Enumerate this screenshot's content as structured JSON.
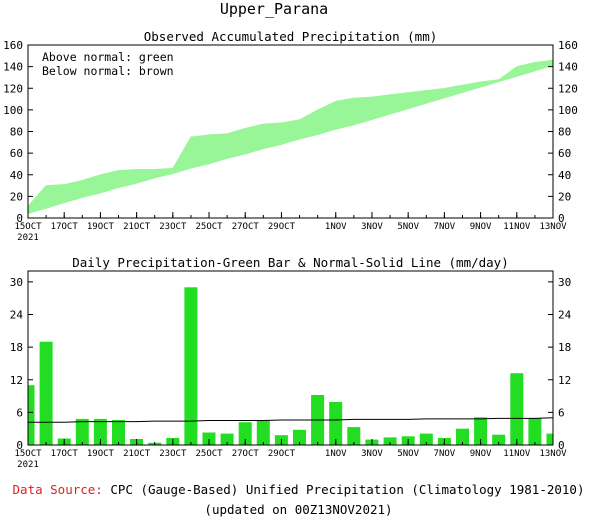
{
  "title": "Upper_Parana",
  "colors": {
    "above_normal": "#98f598",
    "bar": "#22dd22",
    "normal_line": "#000000",
    "source_label": "#e02020"
  },
  "x_ticks": [
    {
      "day": 0,
      "label": "15OCT",
      "sub": "2021"
    },
    {
      "day": 2,
      "label": "17OCT"
    },
    {
      "day": 4,
      "label": "19OCT"
    },
    {
      "day": 6,
      "label": "21OCT"
    },
    {
      "day": 8,
      "label": "23OCT"
    },
    {
      "day": 10,
      "label": "25OCT"
    },
    {
      "day": 12,
      "label": "27OCT"
    },
    {
      "day": 14,
      "label": "29OCT"
    },
    {
      "day": 17,
      "label": "1NOV"
    },
    {
      "day": 19,
      "label": "3NOV"
    },
    {
      "day": 21,
      "label": "5NOV"
    },
    {
      "day": 23,
      "label": "7NOV"
    },
    {
      "day": 25,
      "label": "9NOV"
    },
    {
      "day": 27,
      "label": "11NOV"
    },
    {
      "day": 29,
      "label": "13NOV"
    }
  ],
  "chart_data": [
    {
      "type": "area",
      "title": "Observed Accumulated Precipitation (mm)",
      "legend": [
        "Above normal: green",
        "Below normal: brown"
      ],
      "ylim": [
        0,
        160
      ],
      "y_ticks": [
        0,
        20,
        40,
        60,
        80,
        100,
        120,
        140,
        160
      ],
      "x": [
        0,
        1,
        2,
        3,
        4,
        5,
        6,
        7,
        8,
        9,
        10,
        11,
        12,
        13,
        14,
        15,
        16,
        17,
        18,
        19,
        20,
        21,
        22,
        23,
        24,
        25,
        26,
        27,
        28,
        29
      ],
      "series": [
        {
          "name": "Observed",
          "values": [
            11,
            30,
            31,
            35,
            40,
            44,
            45,
            45,
            46,
            75,
            77,
            78,
            83,
            87,
            88,
            91,
            100,
            108,
            111,
            112,
            114,
            116,
            118,
            120,
            123,
            126,
            128,
            140,
            144,
            146
          ]
        },
        {
          "name": "Normal",
          "values": [
            4,
            9,
            14,
            19,
            23,
            28,
            32,
            37,
            41,
            46,
            50,
            55,
            59,
            64,
            68,
            73,
            77,
            82,
            86,
            91,
            96,
            101,
            106,
            111,
            116,
            121,
            126,
            131,
            136,
            141
          ]
        }
      ]
    },
    {
      "type": "bar",
      "title": "Daily Precipitation-Green Bar & Normal-Solid Line (mm/day)",
      "ylim": [
        0,
        32
      ],
      "y_ticks": [
        0,
        6,
        12,
        18,
        24,
        30
      ],
      "x": [
        0,
        1,
        2,
        3,
        4,
        5,
        6,
        7,
        8,
        9,
        10,
        11,
        12,
        13,
        14,
        15,
        16,
        17,
        18,
        19,
        20,
        21,
        22,
        23,
        24,
        25,
        26,
        27,
        28,
        29
      ],
      "series": [
        {
          "name": "Daily",
          "values": [
            11,
            19,
            1.2,
            4.8,
            4.8,
            4.6,
            1.1,
            0.4,
            1.3,
            29,
            2.3,
            2.1,
            4.2,
            4.5,
            1.8,
            2.8,
            9.2,
            7.9,
            3.3,
            1.0,
            1.4,
            1.6,
            2.1,
            1.3,
            3.0,
            5.1,
            1.9,
            13.2,
            4.9,
            2.1
          ]
        },
        {
          "name": "Normal",
          "values": [
            4.2,
            4.2,
            4.2,
            4.3,
            4.3,
            4.3,
            4.3,
            4.4,
            4.4,
            4.4,
            4.5,
            4.5,
            4.5,
            4.5,
            4.6,
            4.6,
            4.6,
            4.6,
            4.7,
            4.7,
            4.7,
            4.7,
            4.8,
            4.8,
            4.8,
            4.8,
            4.9,
            4.9,
            4.9,
            5.0
          ]
        }
      ]
    }
  ],
  "footer": {
    "source_label": "Data Source:",
    "source_text": " CPC (Gauge-Based) Unified Precipitation (Climatology 1981-2010)",
    "updated": "(updated on 00Z13NOV2021)"
  }
}
